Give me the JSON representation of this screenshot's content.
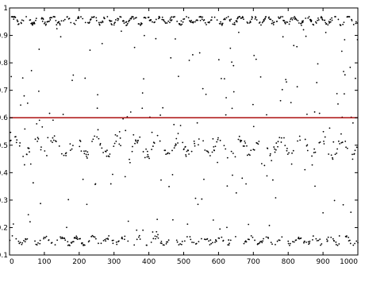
{
  "chart_data": {
    "type": "scatter",
    "title": "",
    "xlabel": "",
    "ylabel": "",
    "xlim": [
      0,
      1000
    ],
    "ylim": [
      0.1,
      1
    ],
    "x_ticks": [
      "0",
      "100",
      "200",
      "300",
      "400",
      "500",
      "600",
      "700",
      "800",
      "900",
      "1000"
    ],
    "y_ticks": [
      "0.1",
      "0.2",
      "0.3",
      "0.4",
      "0.5",
      "0.6",
      "0.7",
      "0.8",
      "0.9",
      "1"
    ],
    "grid": false,
    "point_color": "#000000",
    "threshold": {
      "y": 0.6,
      "color": "#b22222"
    },
    "bands": [
      {
        "name_hint": "upper",
        "center": 0.955,
        "amp": 0.012,
        "freq_per_1000": 26,
        "density": 0.55
      },
      {
        "name_hint": "middle",
        "center": 0.495,
        "amp": 0.03,
        "freq_per_1000": 17,
        "density": 0.33
      },
      {
        "name_hint": "lower",
        "center": 0.152,
        "amp": 0.012,
        "freq_per_1000": 22,
        "density": 0.38
      }
    ],
    "n_points": 1000,
    "scatter_fraction": 0.16
  }
}
